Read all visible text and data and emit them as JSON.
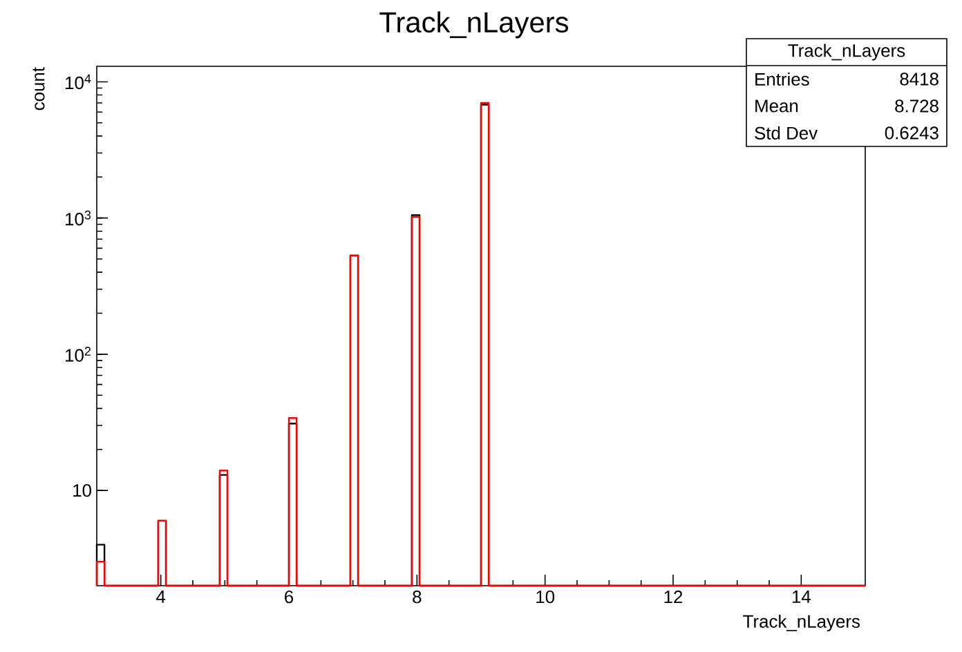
{
  "chart_data": {
    "type": "histogram",
    "title": "Track_nLayers",
    "xlabel": "Track_nLayers",
    "ylabel": "count",
    "annotations": [
      "Track_nLayers",
      "Entries",
      "8418",
      "Mean",
      "8.728",
      "Std Dev",
      "0.6243"
    ],
    "bins": [
      3,
      3.12,
      3.96,
      4.08,
      4.92,
      5.04,
      6.0,
      6.12,
      6.96,
      7.08,
      7.92,
      8.04,
      9.0,
      9.12,
      15
    ],
    "series": [
      {
        "color": "#000000",
        "values": [
          4,
          null,
          6,
          null,
          13,
          null,
          31,
          null,
          530,
          null,
          1050,
          null,
          6800,
          null
        ]
      },
      {
        "color": "#ff0000",
        "values": [
          3,
          null,
          6,
          null,
          14,
          null,
          34,
          null,
          530,
          null,
          1020,
          null,
          7000,
          null
        ]
      }
    ],
    "log": "y",
    "xlim": [
      3,
      15
    ],
    "xticks": [
      4,
      6,
      8,
      10,
      12,
      14
    ],
    "ylim": [
      2,
      13000
    ],
    "yticks": [
      10,
      {
        "value": 100,
        "label": "10$^{2}$"
      },
      {
        "value": 1000,
        "label": "10$^{3}$"
      },
      {
        "value": 10000,
        "label": "10$^{4}$"
      }
    ]
  }
}
